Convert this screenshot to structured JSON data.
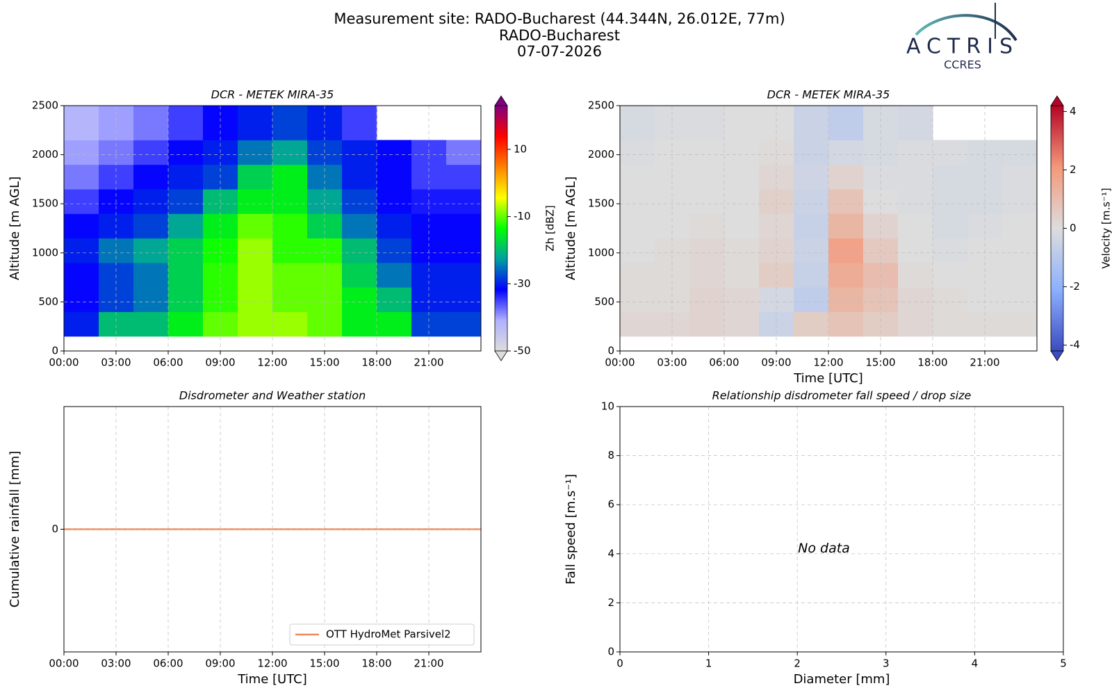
{
  "header": {
    "title": [
      "Measurement site: RADO-Bucharest (44.344N, 26.012E, 77m)",
      "RADO-Bucharest",
      "07-07-2026"
    ],
    "logo": {
      "name": "ACTRIS",
      "subtitle": "CCRES"
    }
  },
  "chart_data": [
    {
      "type": "heatmap",
      "title": "DCR - METEK MIRA-35",
      "ylabel": "Altitude [m AGL]",
      "x_edges": [
        0,
        2,
        4,
        6,
        8,
        10,
        12,
        14,
        16,
        18,
        20,
        22,
        24
      ],
      "y_edges": [
        150,
        400,
        650,
        900,
        1150,
        1400,
        1650,
        1900,
        2150,
        2500
      ],
      "z": [
        [
          -30,
          -20,
          -20,
          -15,
          -10,
          -8,
          -8,
          -10,
          -15,
          -15,
          -28,
          -28
        ],
        [
          -32,
          -28,
          -25,
          -18,
          -12,
          -8,
          -10,
          -10,
          -15,
          -20,
          -30,
          -30
        ],
        [
          -32,
          -28,
          -25,
          -18,
          -12,
          -8,
          -10,
          -10,
          -18,
          -25,
          -30,
          -30
        ],
        [
          -30,
          -25,
          -22,
          -18,
          -13,
          -8,
          -12,
          -12,
          -20,
          -28,
          -32,
          -32
        ],
        [
          -32,
          -30,
          -28,
          -22,
          -15,
          -10,
          -12,
          -18,
          -25,
          -30,
          -32,
          -32
        ],
        [
          -35,
          -32,
          -30,
          -28,
          -20,
          -15,
          -15,
          -22,
          -28,
          -32,
          -33,
          -33
        ],
        [
          -38,
          -35,
          -32,
          -30,
          -28,
          -18,
          -15,
          -25,
          -30,
          -32,
          -35,
          -35
        ],
        [
          -40,
          -38,
          -35,
          -32,
          -30,
          -25,
          -22,
          -28,
          -30,
          -32,
          -35,
          -38
        ],
        [
          -42,
          -40,
          -38,
          -35,
          -32,
          -30,
          -28,
          -30,
          -35,
          null,
          null,
          null
        ]
      ],
      "xlim": [
        0,
        24
      ],
      "xticks": [
        {
          "value": 0,
          "label": "00:00"
        },
        {
          "value": 3,
          "label": "03:00"
        },
        {
          "value": 6,
          "label": "06:00"
        },
        {
          "value": 9,
          "label": "09:00"
        },
        {
          "value": 12,
          "label": "12:00"
        },
        {
          "value": 15,
          "label": "15:00"
        },
        {
          "value": 18,
          "label": "18:00"
        },
        {
          "value": 21,
          "label": "21:00"
        }
      ],
      "ylim": [
        0,
        2500
      ],
      "yticks": [
        0,
        500,
        1000,
        1500,
        2000,
        2500
      ],
      "grid": true,
      "colorbar": {
        "label": "Zh [dBZ]",
        "clim": [
          -50,
          23
        ],
        "ticks": [
          -50,
          -30,
          -10,
          10
        ],
        "colormap": [
          "#dcdcdc",
          "#b0b0ff",
          "#0000ff",
          "#00a0a0",
          "#00ff00",
          "#ffff00",
          "#ff8000",
          "#ff0000",
          "#800080"
        ]
      }
    },
    {
      "type": "heatmap",
      "title": "DCR - METEK MIRA-35",
      "ylabel": "Altitude [m AGL]",
      "xlabel": "Time [UTC]",
      "x_edges": [
        0,
        2,
        4,
        6,
        8,
        10,
        12,
        14,
        16,
        18,
        20,
        22,
        24
      ],
      "y_edges": [
        150,
        400,
        650,
        900,
        1150,
        1400,
        1650,
        1900,
        2150,
        2500
      ],
      "z": [
        [
          0.2,
          0.2,
          0.3,
          0.2,
          -0.5,
          0.5,
          0.8,
          0.5,
          0.2,
          0.1,
          0.1,
          0.1
        ],
        [
          0.1,
          0.1,
          0.3,
          0.2,
          -0.3,
          -0.8,
          1.2,
          0.8,
          0.2,
          0.1,
          0.0,
          0.0
        ],
        [
          0.1,
          0.1,
          0.2,
          0.1,
          0.5,
          -0.6,
          1.5,
          1.0,
          0.1,
          0.0,
          0.0,
          0.0
        ],
        [
          0.0,
          0.1,
          0.2,
          0.1,
          0.3,
          -0.5,
          1.8,
          0.6,
          0.0,
          -0.1,
          0.0,
          0.0
        ],
        [
          0.0,
          0.0,
          0.1,
          0.0,
          0.2,
          -0.6,
          1.2,
          0.3,
          0.0,
          -0.2,
          -0.1,
          0.0
        ],
        [
          0.0,
          0.0,
          0.0,
          0.0,
          0.4,
          -0.5,
          0.8,
          0.0,
          -0.1,
          -0.2,
          -0.2,
          -0.1
        ],
        [
          0.0,
          0.0,
          0.0,
          0.0,
          0.2,
          -0.4,
          0.3,
          -0.1,
          -0.1,
          -0.2,
          -0.2,
          -0.1
        ],
        [
          -0.1,
          0.0,
          0.0,
          0.0,
          0.1,
          -0.5,
          -0.3,
          -0.2,
          -0.1,
          -0.1,
          -0.2,
          -0.2
        ],
        [
          -0.2,
          -0.1,
          -0.1,
          0.0,
          0.0,
          -0.5,
          -0.8,
          -0.2,
          -0.3,
          null,
          null,
          null
        ]
      ],
      "xlim": [
        0,
        24
      ],
      "xticks": [
        {
          "value": 0,
          "label": "00:00"
        },
        {
          "value": 3,
          "label": "03:00"
        },
        {
          "value": 6,
          "label": "06:00"
        },
        {
          "value": 9,
          "label": "09:00"
        },
        {
          "value": 12,
          "label": "12:00"
        },
        {
          "value": 15,
          "label": "15:00"
        },
        {
          "value": 18,
          "label": "18:00"
        },
        {
          "value": 21,
          "label": "21:00"
        }
      ],
      "ylim": [
        0,
        2500
      ],
      "yticks": [
        0,
        500,
        1000,
        1500,
        2000,
        2500
      ],
      "grid": true,
      "colorbar": {
        "label": "Velocity [m.s⁻¹]",
        "clim": [
          -4.2,
          4.2
        ],
        "ticks": [
          -4,
          -2,
          0,
          2,
          4
        ],
        "colormap": [
          "#3b4cc0",
          "#8db0fe",
          "#dddddd",
          "#f4987a",
          "#b40426"
        ]
      }
    },
    {
      "type": "line",
      "title": "Disdrometer and Weather station",
      "ylabel": "Cumulative rainfall [mm]",
      "xlabel": "Time [UTC]",
      "x": [
        0,
        24
      ],
      "series": [
        {
          "name": "OTT HydroMet Parsivel2",
          "color": "#f08a5d",
          "values": [
            0,
            0
          ]
        }
      ],
      "xlim": [
        0,
        24
      ],
      "xticks": [
        {
          "value": 0,
          "label": "00:00"
        },
        {
          "value": 3,
          "label": "03:00"
        },
        {
          "value": 6,
          "label": "06:00"
        },
        {
          "value": 9,
          "label": "09:00"
        },
        {
          "value": 12,
          "label": "12:00"
        },
        {
          "value": 15,
          "label": "15:00"
        },
        {
          "value": 18,
          "label": "18:00"
        },
        {
          "value": 21,
          "label": "21:00"
        }
      ],
      "ylim": [
        -0.05,
        0.05
      ],
      "yticks": [
        0
      ],
      "grid": true,
      "legend": "lower right"
    },
    {
      "type": "scatter",
      "title": "Relationship disdrometer fall speed / drop size",
      "xlabel": "Diameter [mm]",
      "ylabel": "Fall speed [m.s⁻¹]",
      "annotation": "No data",
      "xlim": [
        0,
        5
      ],
      "xticks": [
        0,
        1,
        2,
        3,
        4,
        5
      ],
      "ylim": [
        0,
        10
      ],
      "yticks": [
        0,
        2,
        4,
        6,
        8,
        10
      ],
      "grid": true
    }
  ]
}
